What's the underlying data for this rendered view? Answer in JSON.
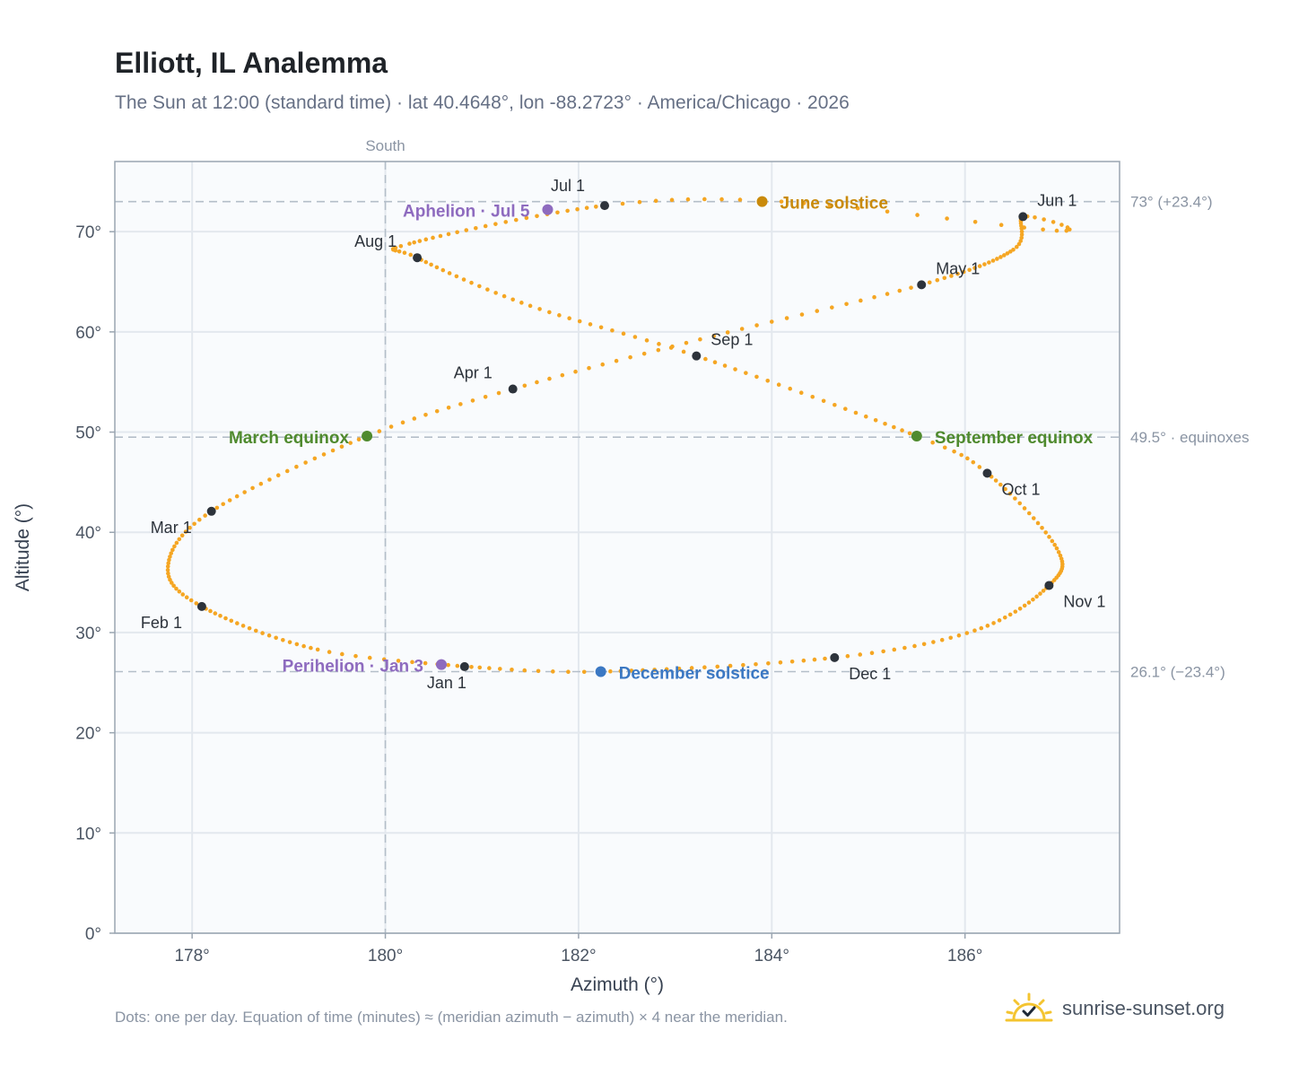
{
  "header": {
    "title": "Elliott, IL Analemma",
    "subtitle": "The Sun at 12:00 (standard time) · lat 40.4648°, lon -88.2723° · America/Chicago · 2026"
  },
  "footer": {
    "note": "Dots: one per day. Equation of time (minutes) ≈ (meridian azimuth − azimuth) × 4 near the meridian.",
    "brand": "sunrise-sunset.org"
  },
  "chart_data": {
    "type": "scatter",
    "xlabel": "Azimuth (°)",
    "ylabel": "Altitude (°)",
    "xlim": [
      177.2,
      187.6
    ],
    "ylim": [
      0,
      77
    ],
    "x_ticks": [
      178,
      180,
      182,
      184,
      186
    ],
    "x_tick_labels": [
      "178°",
      "180°",
      "182°",
      "184°",
      "186°"
    ],
    "y_ticks": [
      0,
      10,
      20,
      30,
      40,
      50,
      60,
      70
    ],
    "y_tick_labels": [
      "0°",
      "10°",
      "20°",
      "30°",
      "40°",
      "50°",
      "60°",
      "70°"
    ],
    "grid": true,
    "meridian": {
      "azimuth": 180,
      "label": "South"
    },
    "reference_lines": [
      {
        "altitude": 73.0,
        "label": "73° (+23.4°)"
      },
      {
        "altitude": 49.5,
        "label": "49.5° · equinoxes"
      },
      {
        "altitude": 26.1,
        "label": "26.1° (−23.4°)"
      }
    ],
    "analemma_color": "#f5a623",
    "month_marks": [
      {
        "date": "Jan 1",
        "az": 180.82,
        "alt": 26.6
      },
      {
        "date": "Feb 1",
        "az": 178.1,
        "alt": 32.6
      },
      {
        "date": "Mar 1",
        "az": 178.2,
        "alt": 42.1
      },
      {
        "date": "Apr 1",
        "az": 181.32,
        "alt": 54.3
      },
      {
        "date": "May 1",
        "az": 185.55,
        "alt": 64.7
      },
      {
        "date": "Jun 1",
        "az": 186.6,
        "alt": 71.5
      },
      {
        "date": "Jul 1",
        "az": 182.27,
        "alt": 72.6
      },
      {
        "date": "Aug 1",
        "az": 180.33,
        "alt": 67.4
      },
      {
        "date": "Sep 1",
        "az": 183.22,
        "alt": 57.6
      },
      {
        "date": "Oct 1",
        "az": 186.23,
        "alt": 45.9
      },
      {
        "date": "Nov 1",
        "az": 186.87,
        "alt": 34.7
      },
      {
        "date": "Dec 1",
        "az": 184.65,
        "alt": 27.5
      }
    ],
    "events": [
      {
        "label": "June solstice",
        "az": 183.9,
        "alt": 73.0,
        "color": "#c98a0b"
      },
      {
        "label": "Aphelion · Jul 5",
        "az": 181.68,
        "alt": 72.2,
        "color": "#8e6bbf"
      },
      {
        "label": "March equinox",
        "az": 179.81,
        "alt": 49.6,
        "color": "#4f8a2e"
      },
      {
        "label": "September equinox",
        "az": 185.5,
        "alt": 49.6,
        "color": "#4f8a2e"
      },
      {
        "label": "Perihelion · Jan 3",
        "az": 180.58,
        "alt": 26.8,
        "color": "#8e6bbf"
      },
      {
        "label": "December solstice",
        "az": 182.23,
        "alt": 26.1,
        "color": "#3b78c3"
      }
    ]
  }
}
